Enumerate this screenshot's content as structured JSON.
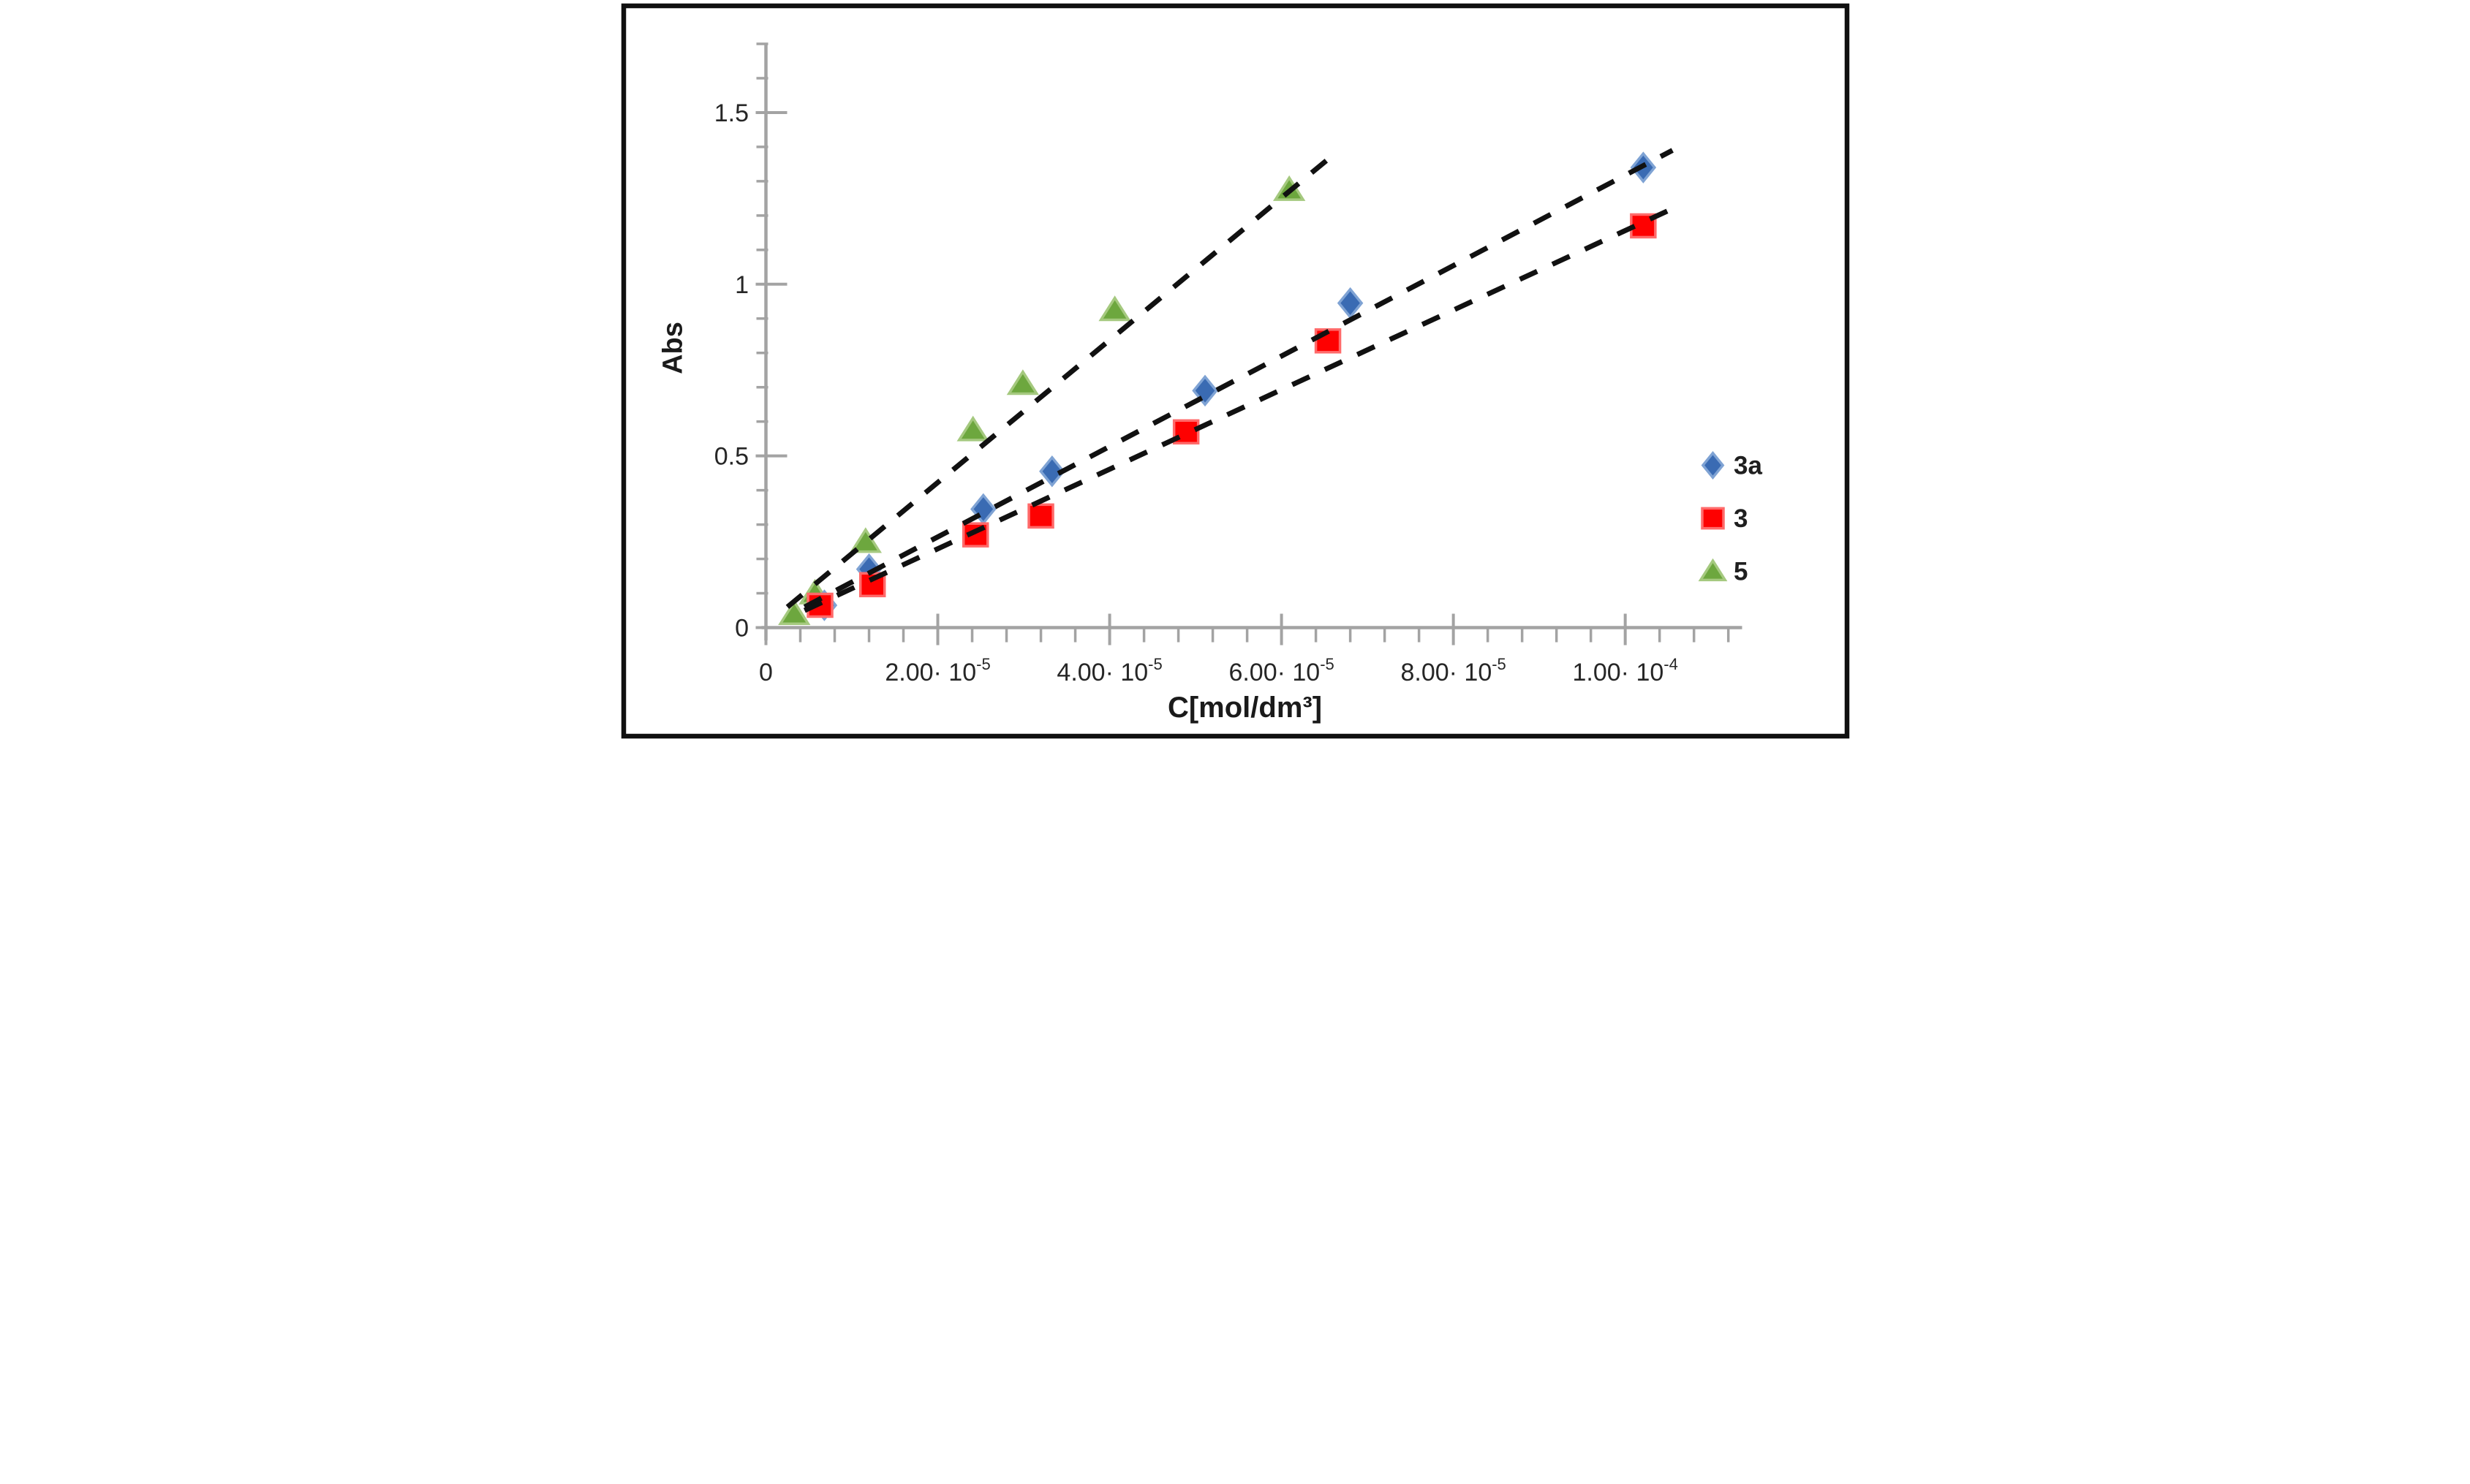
{
  "figure": {
    "background": "#ffffff",
    "border_color": "#101010",
    "axis_color": "#a3a3a3",
    "tick_color": "#a3a3a3",
    "text_color": "#262626",
    "trendline_color": "#111111"
  },
  "chart_data": {
    "type": "scatter",
    "title": "",
    "xlabel": "C[mol/dm³]",
    "ylabel": "Abs",
    "xlim": [
      0,
      0.0001136
    ],
    "ylim": [
      0,
      1.7
    ],
    "grid": false,
    "legend_position": "right",
    "x_major_ticks": [
      {
        "value": 0,
        "text": "0",
        "mant": "",
        "exp": ""
      },
      {
        "value": 2e-05,
        "text": "",
        "mant": "2.00",
        "exp": "-5"
      },
      {
        "value": 4e-05,
        "text": "",
        "mant": "4.00",
        "exp": "-5"
      },
      {
        "value": 6e-05,
        "text": "",
        "mant": "6.00",
        "exp": "-5"
      },
      {
        "value": 8e-05,
        "text": "",
        "mant": "8.00",
        "exp": "-5"
      },
      {
        "value": 0.0001,
        "text": "",
        "mant": "1.00",
        "exp": "-4"
      }
    ],
    "x_minor_step": 4e-06,
    "x_minor_max": 0.000112,
    "y_major_ticks": [
      {
        "value": 0,
        "text": "0"
      },
      {
        "value": 0.5,
        "text": "0.5"
      },
      {
        "value": 1,
        "text": "1"
      },
      {
        "value": 1.5,
        "text": "1.5"
      }
    ],
    "y_minor_step": 0.1,
    "y_minor_max": 1.7,
    "series": [
      {
        "name": "3a",
        "marker": "diamond",
        "color": "#3a6bb3",
        "edge_color": "#7fa3d4",
        "x": [
          6.8e-06,
          1.2e-05,
          2.53e-05,
          3.33e-05,
          5.11e-05,
          6.8e-05,
          0.0001021
        ],
        "y": [
          0.065,
          0.17,
          0.345,
          0.455,
          0.69,
          0.945,
          1.34
        ]
      },
      {
        "name": "3",
        "marker": "square",
        "color": "#fe0101",
        "edge_color": "#ff6a6a",
        "x": [
          6.3e-06,
          1.24e-05,
          2.44e-05,
          3.2e-05,
          4.89e-05,
          6.54e-05,
          0.0001021
        ],
        "y": [
          0.065,
          0.125,
          0.27,
          0.325,
          0.57,
          0.835,
          1.17
        ]
      },
      {
        "name": "5",
        "marker": "triangle",
        "color": "#6da73e",
        "edge_color": "#a5c97f",
        "x": [
          3.3e-06,
          5.7e-06,
          1.16e-05,
          2.41e-05,
          2.99e-05,
          4.06e-05,
          6.09e-05
        ],
        "y": [
          0.04,
          0.1,
          0.25,
          0.575,
          0.71,
          0.925,
          1.275
        ]
      }
    ],
    "trendlines": [
      {
        "series": "3a",
        "x1": 4.5e-06,
        "y1": 0.06,
        "x2": 0.0001055,
        "y2": 1.39
      },
      {
        "series": "3",
        "x1": 4.5e-06,
        "y1": 0.05,
        "x2": 0.0001055,
        "y2": 1.22
      },
      {
        "series": "5",
        "x1": 2.5e-06,
        "y1": 0.06,
        "x2": 6.57e-05,
        "y2": 1.37
      }
    ],
    "draw_order": [
      "5",
      "3a",
      "3"
    ],
    "legend": [
      {
        "label": "3a",
        "marker": "diamond",
        "color": "#3a6bb3"
      },
      {
        "label": "3",
        "marker": "square",
        "color": "#fe0101"
      },
      {
        "label": "5",
        "marker": "triangle",
        "color": "#6da73e"
      }
    ]
  }
}
